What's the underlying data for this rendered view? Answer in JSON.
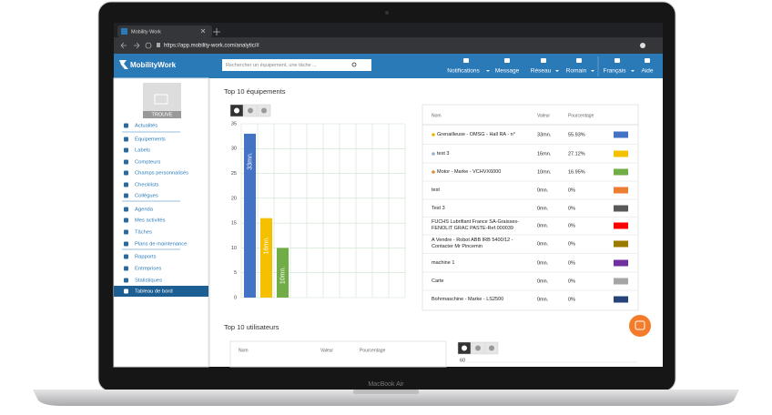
{
  "browser": {
    "tab_title": "Mobility Work",
    "url": "https://app.mobility-work.com/analytic/#"
  },
  "header": {
    "logo": "MobilityWork",
    "search_placeholder": "Rechercher un équipement, une tâche ...",
    "nav": [
      "Notifications",
      "Message",
      "Réseau",
      "Romain",
      "Français",
      "Aide"
    ]
  },
  "sidebar": {
    "logo_caption": "TROUVE",
    "items": [
      "Actualités",
      "Équipements",
      "Labels",
      "Compteurs",
      "Champs personnalisés",
      "Checklists",
      "Collègues",
      "Agenda",
      "Mes activités",
      "Tâches",
      "Plans de maintenance",
      "Rapports",
      "Entreprises",
      "Statistiques",
      "Tableau de bord"
    ]
  },
  "equipment": {
    "title": "Top 10 équipements",
    "chart": {
      "type": "bar",
      "values": [
        33,
        16,
        10
      ],
      "value_labels": [
        "33mn.",
        "16mn.",
        "10mn."
      ],
      "colors": [
        "#4472c4",
        "#f5c000",
        "#70ad47"
      ],
      "ylim": [
        0,
        35
      ],
      "yticks": [
        0,
        5,
        10,
        15,
        20,
        25,
        30,
        35
      ],
      "grid": true
    },
    "table": {
      "columns": [
        "Nom",
        "Valeur",
        "Pourcentage"
      ],
      "rows": [
        {
          "name": "Grenailleuse - OMSG - Hall RA - n°",
          "value": "33mn.",
          "percent": "55.93%",
          "color": "#4472c4"
        },
        {
          "name": "test 3",
          "value": "16mn.",
          "percent": "27.12%",
          "color": "#f5c000"
        },
        {
          "name": "Motor - Marke - VCHVX6000",
          "value": "10mn.",
          "percent": "16.95%",
          "color": "#70ad47"
        },
        {
          "name": "test",
          "value": "0mn.",
          "percent": "0%",
          "color": "#ed7d31"
        },
        {
          "name": "Test 3",
          "value": "0mn.",
          "percent": "0%",
          "color": "#595959"
        },
        {
          "name": "FUCHS Lubrifiant France SA-Graisses-FENOLIT GRAC PASTE-Ref.000039",
          "value": "0mn.",
          "percent": "0%",
          "color": "#ff0000"
        },
        {
          "name": "A Vendre - Robot ABB IRB 5400/12 - Contacter Mr Pincemin",
          "value": "0mn.",
          "percent": "0%",
          "color": "#9c7a00"
        },
        {
          "name": "machine 1",
          "value": "0mn.",
          "percent": "0%",
          "color": "#7030a0"
        },
        {
          "name": "Carte",
          "value": "0mn.",
          "percent": "0%",
          "color": "#a5a5a5"
        },
        {
          "name": "Bohrmaschine - Marke - LS2500",
          "value": "0mn.",
          "percent": "0%",
          "color": "#264478"
        }
      ]
    }
  },
  "users": {
    "title": "Top 10 utilisateurs",
    "table": {
      "columns": [
        "Nom",
        "Valeur",
        "Pourcentage"
      ]
    },
    "chart": {
      "yticks": [
        60
      ]
    }
  },
  "laptop_label": "MacBook Air"
}
